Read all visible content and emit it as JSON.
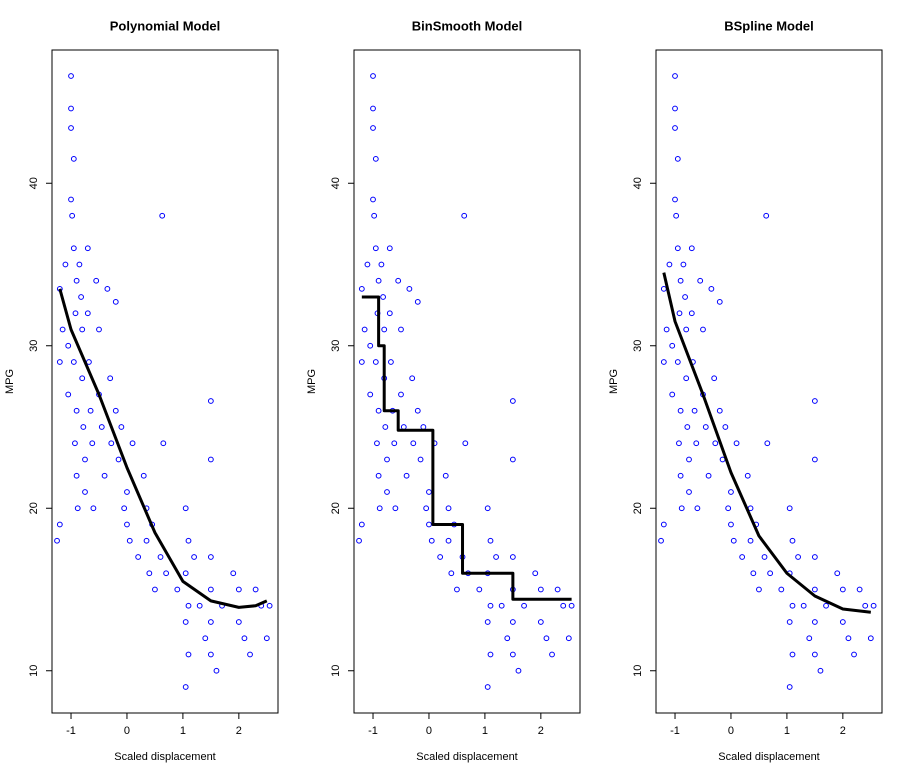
{
  "chart_data": [
    {
      "type": "scatter",
      "title": "Polynomial Model",
      "x_label": "Scaled displacement",
      "y_label": "MPG",
      "xlim": [
        -1.34,
        2.7
      ],
      "ylim": [
        7.4,
        48.2
      ],
      "xticks": [
        -1,
        0,
        1,
        2
      ],
      "yticks": [
        10,
        20,
        30,
        40
      ],
      "points": {
        "color": "#0000ff",
        "x": [
          -1.2,
          -1.15,
          -1.2,
          -1.25,
          -1.2,
          -1.1,
          -1.05,
          -1.05,
          -1,
          -1,
          -1,
          -0.95,
          -1,
          -0.98,
          -0.95,
          -0.9,
          -0.92,
          -0.95,
          -0.9,
          -0.93,
          -0.9,
          -0.88,
          -0.85,
          -0.82,
          -0.8,
          -0.8,
          -0.78,
          -0.75,
          -0.75,
          -0.7,
          -0.7,
          -0.68,
          -0.65,
          -0.62,
          -0.6,
          -0.55,
          -0.5,
          -0.5,
          -0.45,
          -0.4,
          -0.35,
          -0.3,
          -0.28,
          -0.2,
          -0.2,
          -0.15,
          -0.1,
          -0.05,
          0,
          0,
          0.05,
          0.1,
          0.2,
          0.3,
          0.35,
          0.35,
          0.4,
          0.45,
          0.5,
          0.6,
          0.63,
          0.65,
          0.7,
          0.9,
          1.05,
          1.1,
          1.05,
          1.1,
          1.05,
          1.1,
          1.05,
          1.2,
          1.3,
          1.4,
          1.5,
          1.5,
          1.5,
          1.5,
          1.5,
          1.5,
          1.6,
          1.7,
          1.9,
          2,
          2,
          2.1,
          2.2,
          2.3,
          2.4,
          2.5,
          2.55
        ],
        "y": [
          33.5,
          31,
          29,
          18,
          19,
          35,
          30,
          27,
          46.6,
          44.6,
          43.4,
          41.5,
          39,
          38,
          36,
          34,
          32,
          29,
          26,
          24,
          22,
          20,
          35,
          33,
          31,
          28,
          25,
          23,
          21,
          36,
          32,
          29,
          26,
          24,
          20,
          34,
          31,
          27,
          25,
          22,
          33.5,
          28,
          24,
          32.7,
          26,
          23,
          25,
          20,
          21,
          19,
          18,
          24,
          17,
          22,
          20,
          18,
          16,
          19,
          15,
          17,
          38,
          24,
          16,
          15,
          20,
          18,
          16,
          14,
          13,
          11,
          9,
          17,
          14,
          12,
          26.6,
          23,
          17,
          15,
          13,
          11,
          10,
          14,
          16,
          15,
          13,
          12,
          11,
          15,
          14,
          12,
          14
        ]
      },
      "fit": {
        "color": "#000000",
        "x": [
          -1.2,
          -1,
          -0.5,
          0,
          0.5,
          1,
          1.5,
          2,
          2.3,
          2.5
        ],
        "y": [
          33.5,
          31,
          27,
          22.5,
          18.5,
          15.5,
          14.3,
          13.9,
          14,
          14.3
        ]
      }
    },
    {
      "type": "scatter",
      "title": "BinSmooth Model",
      "x_label": "Scaled displacement",
      "y_label": "MPG",
      "xlim": [
        -1.34,
        2.7
      ],
      "ylim": [
        7.4,
        48.2
      ],
      "xticks": [
        -1,
        0,
        1,
        2
      ],
      "yticks": [
        10,
        20,
        30,
        40
      ],
      "points": {
        "color": "#0000ff",
        "x": [
          -1.2,
          -1.15,
          -1.2,
          -1.25,
          -1.2,
          -1.1,
          -1.05,
          -1.05,
          -1,
          -1,
          -1,
          -0.95,
          -1,
          -0.98,
          -0.95,
          -0.9,
          -0.92,
          -0.95,
          -0.9,
          -0.93,
          -0.9,
          -0.88,
          -0.85,
          -0.82,
          -0.8,
          -0.8,
          -0.78,
          -0.75,
          -0.75,
          -0.7,
          -0.7,
          -0.68,
          -0.65,
          -0.62,
          -0.6,
          -0.55,
          -0.5,
          -0.5,
          -0.45,
          -0.4,
          -0.35,
          -0.3,
          -0.28,
          -0.2,
          -0.2,
          -0.15,
          -0.1,
          -0.05,
          0,
          0,
          0.05,
          0.1,
          0.2,
          0.3,
          0.35,
          0.35,
          0.4,
          0.45,
          0.5,
          0.6,
          0.63,
          0.65,
          0.7,
          0.9,
          1.05,
          1.1,
          1.05,
          1.1,
          1.05,
          1.1,
          1.05,
          1.2,
          1.3,
          1.4,
          1.5,
          1.5,
          1.5,
          1.5,
          1.5,
          1.5,
          1.6,
          1.7,
          1.9,
          2,
          2,
          2.1,
          2.2,
          2.3,
          2.4,
          2.5,
          2.55
        ],
        "y": [
          33.5,
          31,
          29,
          18,
          19,
          35,
          30,
          27,
          46.6,
          44.6,
          43.4,
          41.5,
          39,
          38,
          36,
          34,
          32,
          29,
          26,
          24,
          22,
          20,
          35,
          33,
          31,
          28,
          25,
          23,
          21,
          36,
          32,
          29,
          26,
          24,
          20,
          34,
          31,
          27,
          25,
          22,
          33.5,
          28,
          24,
          32.7,
          26,
          23,
          25,
          20,
          21,
          19,
          18,
          24,
          17,
          22,
          20,
          18,
          16,
          19,
          15,
          17,
          38,
          24,
          16,
          15,
          20,
          18,
          16,
          14,
          13,
          11,
          9,
          17,
          14,
          12,
          26.6,
          23,
          17,
          15,
          13,
          11,
          10,
          14,
          16,
          15,
          13,
          12,
          11,
          15,
          14,
          12,
          14
        ]
      },
      "fit": {
        "color": "#000000",
        "x": [
          -1.2,
          -0.9,
          -0.9,
          -0.8,
          -0.8,
          -0.55,
          -0.55,
          0.07,
          0.07,
          0.6,
          0.6,
          1.5,
          1.5,
          2.55
        ],
        "y": [
          33,
          33,
          30,
          30,
          26,
          26,
          24.8,
          24.8,
          19,
          19,
          16,
          16,
          14.4,
          14.4
        ]
      }
    },
    {
      "type": "scatter",
      "title": "BSpline Model",
      "x_label": "Scaled displacement",
      "y_label": "MPG",
      "xlim": [
        -1.34,
        2.7
      ],
      "ylim": [
        7.4,
        48.2
      ],
      "xticks": [
        -1,
        0,
        1,
        2
      ],
      "yticks": [
        10,
        20,
        30,
        40
      ],
      "points": {
        "color": "#0000ff",
        "x": [
          -1.2,
          -1.15,
          -1.2,
          -1.25,
          -1.2,
          -1.1,
          -1.05,
          -1.05,
          -1,
          -1,
          -1,
          -0.95,
          -1,
          -0.98,
          -0.95,
          -0.9,
          -0.92,
          -0.95,
          -0.9,
          -0.93,
          -0.9,
          -0.88,
          -0.85,
          -0.82,
          -0.8,
          -0.8,
          -0.78,
          -0.75,
          -0.75,
          -0.7,
          -0.7,
          -0.68,
          -0.65,
          -0.62,
          -0.6,
          -0.55,
          -0.5,
          -0.5,
          -0.45,
          -0.4,
          -0.35,
          -0.3,
          -0.28,
          -0.2,
          -0.2,
          -0.15,
          -0.1,
          -0.05,
          0,
          0,
          0.05,
          0.1,
          0.2,
          0.3,
          0.35,
          0.35,
          0.4,
          0.45,
          0.5,
          0.6,
          0.63,
          0.65,
          0.7,
          0.9,
          1.05,
          1.1,
          1.05,
          1.1,
          1.05,
          1.1,
          1.05,
          1.2,
          1.3,
          1.4,
          1.5,
          1.5,
          1.5,
          1.5,
          1.5,
          1.5,
          1.6,
          1.7,
          1.9,
          2,
          2,
          2.1,
          2.2,
          2.3,
          2.4,
          2.5,
          2.55
        ],
        "y": [
          33.5,
          31,
          29,
          18,
          19,
          35,
          30,
          27,
          46.6,
          44.6,
          43.4,
          41.5,
          39,
          38,
          36,
          34,
          32,
          29,
          26,
          24,
          22,
          20,
          35,
          33,
          31,
          28,
          25,
          23,
          21,
          36,
          32,
          29,
          26,
          24,
          20,
          34,
          31,
          27,
          25,
          22,
          33.5,
          28,
          24,
          32.7,
          26,
          23,
          25,
          20,
          21,
          19,
          18,
          24,
          17,
          22,
          20,
          18,
          16,
          19,
          15,
          17,
          38,
          24,
          16,
          15,
          20,
          18,
          16,
          14,
          13,
          11,
          9,
          17,
          14,
          12,
          26.6,
          23,
          17,
          15,
          13,
          11,
          10,
          14,
          16,
          15,
          13,
          12,
          11,
          15,
          14,
          12,
          14
        ]
      },
      "fit": {
        "color": "#000000",
        "x": [
          -1.2,
          -1,
          -0.5,
          0,
          0.5,
          1,
          1.5,
          2,
          2.5
        ],
        "y": [
          34.5,
          31.5,
          27,
          22.2,
          18.3,
          16,
          14.6,
          13.8,
          13.6
        ]
      }
    }
  ]
}
